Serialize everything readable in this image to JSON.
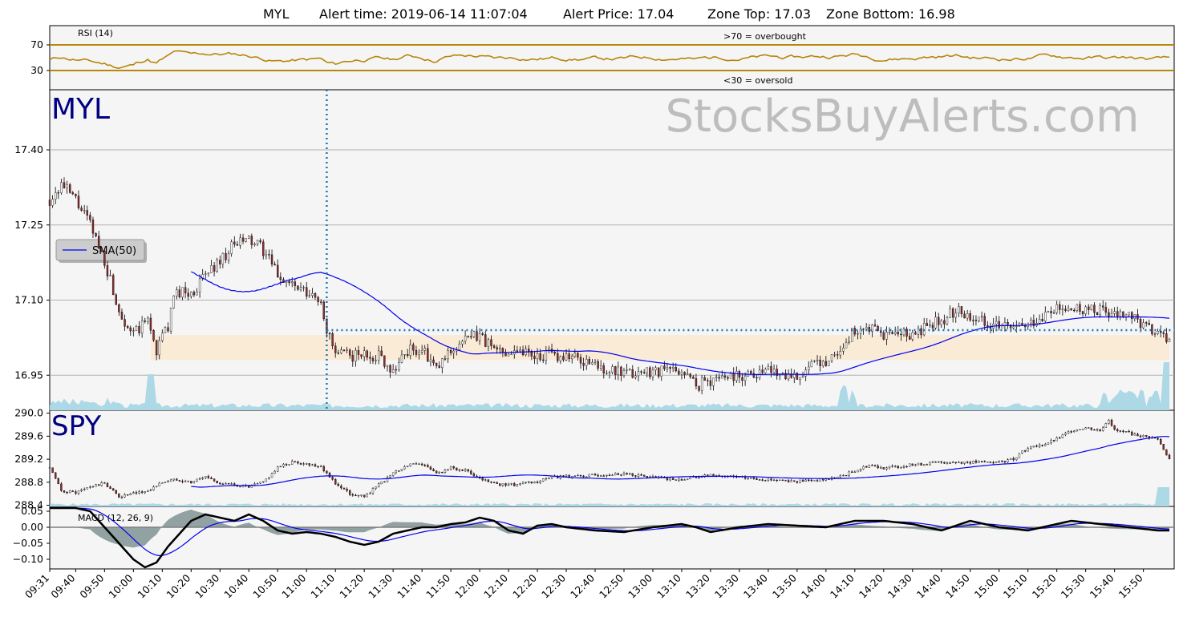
{
  "title": {
    "symbol": "MYL",
    "alert_time": "Alert time: 2019-06-14 11:07:04",
    "alert_price": "Alert Price: 17.04",
    "zone_top": "Zone Top: 17.03",
    "zone_bottom": "Zone Bottom: 16.98"
  },
  "watermark": "StocksBuyAlerts.com",
  "colors": {
    "panel_bg": "#f5f5f5",
    "rsi": "#b8860b",
    "sma": "#0000ee",
    "volume": "#add8e6",
    "zone": "#faebd7",
    "alert_line": "#1f77b4",
    "macd_hist": "#2f4f4f",
    "symbol_text": "#000080"
  },
  "chart_data": [
    {
      "type": "line",
      "name": "rsi-panel",
      "label": "RSI (14)",
      "overbought_label": ">70 = overbought",
      "oversold_label": "<30 = oversold",
      "overbought": 70,
      "oversold": 30,
      "ylim": [
        0,
        100
      ],
      "yticks": [
        30,
        70
      ],
      "y_tick_labels": [
        "30",
        "70"
      ]
    },
    {
      "type": "candlestick",
      "name": "myl-panel",
      "symbol": "MYL",
      "ylim": [
        16.88,
        17.52
      ],
      "yticks": [
        16.95,
        17.1,
        17.25,
        17.4
      ],
      "y_tick_labels": [
        "16.95",
        "17.10",
        "17.25",
        "17.40"
      ],
      "legend": "SMA(50)",
      "legend_position": "left",
      "zone": {
        "top": 17.03,
        "bottom": 16.98
      },
      "alert": {
        "time": "11:07",
        "price": 17.04
      },
      "close_keyframes": [
        [
          "09:31",
          17.3
        ],
        [
          "09:35",
          17.33
        ],
        [
          "09:40",
          17.3
        ],
        [
          "09:45",
          17.25
        ],
        [
          "09:50",
          17.18
        ],
        [
          "09:55",
          17.08
        ],
        [
          "10:00",
          17.03
        ],
        [
          "10:05",
          17.06
        ],
        [
          "10:08",
          17.0
        ],
        [
          "10:12",
          17.05
        ],
        [
          "10:15",
          17.12
        ],
        [
          "10:20",
          17.11
        ],
        [
          "10:25",
          17.15
        ],
        [
          "10:30",
          17.18
        ],
        [
          "10:35",
          17.21
        ],
        [
          "10:40",
          17.22
        ],
        [
          "10:45",
          17.2
        ],
        [
          "10:50",
          17.15
        ],
        [
          "10:55",
          17.13
        ],
        [
          "11:00",
          17.11
        ],
        [
          "11:05",
          17.1
        ],
        [
          "11:07",
          17.04
        ],
        [
          "11:10",
          16.99
        ],
        [
          "11:15",
          16.99
        ],
        [
          "11:20",
          16.99
        ],
        [
          "11:25",
          16.99
        ],
        [
          "11:30",
          16.96
        ],
        [
          "11:35",
          17.0
        ],
        [
          "11:40",
          17.0
        ],
        [
          "11:45",
          16.96
        ],
        [
          "11:50",
          17.0
        ],
        [
          "11:55",
          17.02
        ],
        [
          "12:00",
          17.03
        ],
        [
          "12:05",
          17.0
        ],
        [
          "12:10",
          17.0
        ],
        [
          "12:15",
          17.0
        ],
        [
          "12:20",
          16.99
        ],
        [
          "12:25",
          16.99
        ],
        [
          "12:30",
          16.99
        ],
        [
          "12:40",
          16.97
        ],
        [
          "12:50",
          16.95
        ],
        [
          "13:00",
          16.96
        ],
        [
          "13:10",
          16.96
        ],
        [
          "13:15",
          16.93
        ],
        [
          "13:20",
          16.94
        ],
        [
          "13:25",
          16.95
        ],
        [
          "13:30",
          16.95
        ],
        [
          "13:40",
          16.96
        ],
        [
          "13:50",
          16.95
        ],
        [
          "14:00",
          16.98
        ],
        [
          "14:05",
          17.0
        ],
        [
          "14:10",
          17.04
        ],
        [
          "14:15",
          17.04
        ],
        [
          "14:20",
          17.03
        ],
        [
          "14:30",
          17.03
        ],
        [
          "14:40",
          17.06
        ],
        [
          "14:45",
          17.08
        ],
        [
          "14:50",
          17.07
        ],
        [
          "15:00",
          17.05
        ],
        [
          "15:05",
          17.04
        ],
        [
          "15:10",
          17.05
        ],
        [
          "15:15",
          17.07
        ],
        [
          "15:20",
          17.08
        ],
        [
          "15:25",
          17.08
        ],
        [
          "15:30",
          17.08
        ],
        [
          "15:35",
          17.08
        ],
        [
          "15:40",
          17.07
        ],
        [
          "15:45",
          17.07
        ],
        [
          "15:50",
          17.05
        ],
        [
          "15:55",
          17.03
        ],
        [
          "15:59",
          17.02
        ]
      ]
    },
    {
      "type": "candlestick",
      "name": "spy-panel",
      "symbol": "SPY",
      "ylim": [
        288.38,
        290.05
      ],
      "yticks": [
        288.4,
        288.8,
        289.2,
        289.6,
        290.0
      ],
      "y_tick_labels": [
        "288.4",
        "288.8",
        "289.2",
        "289.6",
        "290.0"
      ],
      "close_keyframes": [
        [
          "09:31",
          289.05
        ],
        [
          "09:35",
          288.65
        ],
        [
          "09:40",
          288.62
        ],
        [
          "09:45",
          288.72
        ],
        [
          "09:50",
          288.78
        ],
        [
          "09:55",
          288.55
        ],
        [
          "10:00",
          288.6
        ],
        [
          "10:05",
          288.65
        ],
        [
          "10:10",
          288.8
        ],
        [
          "10:15",
          288.85
        ],
        [
          "10:20",
          288.8
        ],
        [
          "10:25",
          288.9
        ],
        [
          "10:30",
          288.78
        ],
        [
          "10:35",
          288.75
        ],
        [
          "10:40",
          288.72
        ],
        [
          "10:45",
          288.8
        ],
        [
          "10:50",
          289.05
        ],
        [
          "10:55",
          289.15
        ],
        [
          "11:00",
          289.12
        ],
        [
          "11:05",
          289.08
        ],
        [
          "11:10",
          288.78
        ],
        [
          "11:15",
          288.6
        ],
        [
          "11:20",
          288.55
        ],
        [
          "11:25",
          288.75
        ],
        [
          "11:30",
          288.95
        ],
        [
          "11:35",
          289.1
        ],
        [
          "11:40",
          289.12
        ],
        [
          "11:45",
          288.95
        ],
        [
          "11:50",
          289.05
        ],
        [
          "11:55",
          289.0
        ],
        [
          "12:00",
          288.85
        ],
        [
          "12:05",
          288.78
        ],
        [
          "12:10",
          288.75
        ],
        [
          "12:20",
          288.8
        ],
        [
          "12:25",
          288.88
        ],
        [
          "12:30",
          288.9
        ],
        [
          "12:40",
          288.92
        ],
        [
          "12:50",
          288.95
        ],
        [
          "13:00",
          288.88
        ],
        [
          "13:10",
          288.85
        ],
        [
          "13:20",
          288.92
        ],
        [
          "13:30",
          288.88
        ],
        [
          "13:40",
          288.85
        ],
        [
          "13:50",
          288.82
        ],
        [
          "14:00",
          288.85
        ],
        [
          "14:05",
          288.9
        ],
        [
          "14:10",
          289.0
        ],
        [
          "14:15",
          289.1
        ],
        [
          "14:20",
          289.05
        ],
        [
          "14:30",
          289.1
        ],
        [
          "14:40",
          289.15
        ],
        [
          "14:50",
          289.15
        ],
        [
          "15:00",
          289.15
        ],
        [
          "15:05",
          289.2
        ],
        [
          "15:08",
          289.35
        ],
        [
          "15:15",
          289.45
        ],
        [
          "15:20",
          289.55
        ],
        [
          "15:25",
          289.7
        ],
        [
          "15:30",
          289.75
        ],
        [
          "15:35",
          289.7
        ],
        [
          "15:38",
          289.9
        ],
        [
          "15:40",
          289.7
        ],
        [
          "15:45",
          289.65
        ],
        [
          "15:50",
          289.6
        ],
        [
          "15:55",
          289.55
        ],
        [
          "15:59",
          289.2
        ]
      ]
    },
    {
      "type": "line",
      "name": "macd-panel",
      "label": "MACD (12, 26, 9)",
      "ylim": [
        -0.13,
        0.065
      ],
      "yticks": [
        -0.1,
        -0.05,
        0.0,
        0.05
      ],
      "y_tick_labels": [
        "−0.10",
        "−0.05",
        "0.00",
        "0.05"
      ],
      "macd_keyframes": [
        [
          "09:31",
          0.06
        ],
        [
          "09:40",
          0.06
        ],
        [
          "09:45",
          0.05
        ],
        [
          "09:50",
          0.0
        ],
        [
          "09:55",
          -0.05
        ],
        [
          "10:00",
          -0.1
        ],
        [
          "10:04",
          -0.125
        ],
        [
          "10:08",
          -0.11
        ],
        [
          "10:12",
          -0.06
        ],
        [
          "10:16",
          -0.02
        ],
        [
          "10:20",
          0.02
        ],
        [
          "10:25",
          0.04
        ],
        [
          "10:30",
          0.03
        ],
        [
          "10:35",
          0.02
        ],
        [
          "10:40",
          0.04
        ],
        [
          "10:45",
          0.02
        ],
        [
          "10:50",
          -0.01
        ],
        [
          "10:55",
          -0.02
        ],
        [
          "11:00",
          -0.015
        ],
        [
          "11:05",
          -0.02
        ],
        [
          "11:10",
          -0.03
        ],
        [
          "11:15",
          -0.045
        ],
        [
          "11:20",
          -0.055
        ],
        [
          "11:25",
          -0.045
        ],
        [
          "11:30",
          -0.02
        ],
        [
          "11:35",
          -0.01
        ],
        [
          "11:40",
          0.0
        ],
        [
          "11:45",
          0.0
        ],
        [
          "11:50",
          0.01
        ],
        [
          "11:55",
          0.015
        ],
        [
          "12:00",
          0.03
        ],
        [
          "12:05",
          0.02
        ],
        [
          "12:10",
          -0.01
        ],
        [
          "12:15",
          -0.02
        ],
        [
          "12:20",
          0.005
        ],
        [
          "12:25",
          0.01
        ],
        [
          "12:30",
          0.0
        ],
        [
          "12:40",
          -0.01
        ],
        [
          "12:50",
          -0.015
        ],
        [
          "13:00",
          0.0
        ],
        [
          "13:10",
          0.01
        ],
        [
          "13:15",
          0.0
        ],
        [
          "13:20",
          -0.015
        ],
        [
          "13:30",
          0.0
        ],
        [
          "13:40",
          0.01
        ],
        [
          "13:50",
          0.005
        ],
        [
          "14:00",
          0.0
        ],
        [
          "14:10",
          0.02
        ],
        [
          "14:20",
          0.02
        ],
        [
          "14:30",
          0.01
        ],
        [
          "14:40",
          -0.01
        ],
        [
          "14:50",
          0.02
        ],
        [
          "15:00",
          0.0
        ],
        [
          "15:10",
          -0.01
        ],
        [
          "15:15",
          0.0
        ],
        [
          "15:25",
          0.02
        ],
        [
          "15:35",
          0.01
        ],
        [
          "15:45",
          0.0
        ],
        [
          "15:55",
          -0.01
        ],
        [
          "15:59",
          -0.01
        ]
      ]
    }
  ],
  "x_axis": {
    "labels": [
      "09:31",
      "09:40",
      "09:50",
      "10:00",
      "10:10",
      "10:20",
      "10:30",
      "10:40",
      "10:50",
      "11:00",
      "11:10",
      "11:20",
      "11:30",
      "11:40",
      "11:50",
      "12:00",
      "12:10",
      "12:20",
      "12:30",
      "12:40",
      "12:50",
      "13:00",
      "13:10",
      "13:20",
      "13:30",
      "13:40",
      "13:50",
      "14:00",
      "14:10",
      "14:20",
      "14:30",
      "14:40",
      "14:50",
      "15:00",
      "15:10",
      "15:20",
      "15:30",
      "15:40",
      "15:50"
    ]
  }
}
